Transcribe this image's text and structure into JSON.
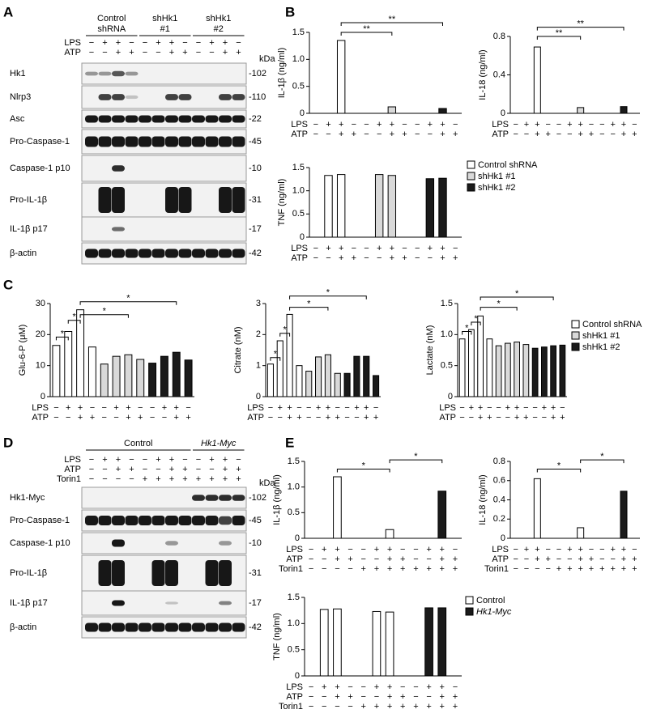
{
  "panel_labels": [
    "A",
    "B",
    "C",
    "D",
    "E"
  ],
  "panel_a": {
    "groups": [
      {
        "lines": [
          "Control",
          "shRNA"
        ]
      },
      {
        "lines": [
          "shHk1",
          "#1"
        ]
      },
      {
        "lines": [
          "shHk1",
          "#2"
        ]
      }
    ],
    "rows": [
      {
        "label": "LPS",
        "signs": [
          "−",
          "+",
          "+",
          "−",
          "−",
          "+",
          "+",
          "−",
          "−",
          "+",
          "+",
          "−"
        ]
      },
      {
        "label": "ATP",
        "signs": [
          "−",
          "−",
          "+",
          "+",
          "−",
          "−",
          "+",
          "+",
          "−",
          "−",
          "+",
          "+"
        ]
      }
    ],
    "kda_unit": "kDa",
    "blots": [
      {
        "label": "Hk1",
        "kda": "-102"
      },
      {
        "label": "Nlrp3",
        "kda": "-110"
      },
      {
        "label": "Asc",
        "kda": "-22"
      },
      {
        "label": "Pro-Caspase-1",
        "kda": "-45"
      },
      {
        "label": "Caspase-1 p10",
        "kda": "-10"
      },
      {
        "label": "Pro-IL-1β",
        "kda": "-31"
      },
      {
        "label": "IL-1β p17",
        "kda": "-17"
      },
      {
        "label": "β-actin",
        "kda": "-42"
      }
    ]
  },
  "panel_d": {
    "groups": [
      {
        "lines": [
          "Control"
        ]
      },
      {
        "lines": [
          "Hk1-Myc"
        ]
      }
    ],
    "rows": [
      {
        "label": "LPS",
        "signs": [
          "−",
          "+",
          "+",
          "−",
          "−",
          "+",
          "+",
          "−",
          "−",
          "+",
          "+",
          "−"
        ]
      },
      {
        "label": "ATP",
        "signs": [
          "−",
          "−",
          "+",
          "+",
          "−",
          "−",
          "+",
          "+",
          "−",
          "−",
          "+",
          "+"
        ]
      },
      {
        "label": "Torin1",
        "signs": [
          "−",
          "−",
          "−",
          "−",
          "+",
          "+",
          "+",
          "+",
          "+",
          "+",
          "+",
          "+"
        ]
      }
    ],
    "kda_unit": "kDa",
    "blots": [
      {
        "label": "Hk1-Myc",
        "kda": "-102"
      },
      {
        "label": "Pro-Caspase-1",
        "kda": "-45"
      },
      {
        "label": "Caspase-1 p10",
        "kda": "-10"
      },
      {
        "label": "Pro-IL-1β",
        "kda": "-31"
      },
      {
        "label": "IL-1β p17",
        "kda": "-17"
      },
      {
        "label": "β-actin",
        "kda": "-42"
      }
    ]
  },
  "chart_data": [
    {
      "type": "bar",
      "ylabel": "IL-1β (ng/ml)",
      "ylim": [
        0,
        1.5
      ],
      "yticks": [
        0,
        0.5,
        {
          "value": 1,
          "label": "1.0"
        },
        1.5
      ],
      "series": [
        {
          "color": "#ffffff",
          "values": [
            0,
            0,
            1.35,
            0,
            null,
            null,
            null,
            null,
            null,
            null,
            null,
            null
          ]
        },
        {
          "color": "#d9d9d9",
          "values": [
            null,
            null,
            null,
            null,
            0,
            0,
            0.12,
            0,
            null,
            null,
            null,
            null
          ]
        },
        {
          "color": "#1a1a1a",
          "values": [
            null,
            null,
            null,
            null,
            null,
            null,
            null,
            null,
            0,
            0,
            0.09,
            0
          ]
        }
      ],
      "annotations": [
        "**",
        "**"
      ],
      "rows": [
        {
          "label": "LPS",
          "signs": [
            "−",
            "+",
            "+",
            "−",
            "−",
            "+",
            "+",
            "−",
            "−",
            "+",
            "+",
            "−"
          ]
        },
        {
          "label": "ATP",
          "signs": [
            "−",
            "−",
            "+",
            "+",
            "−",
            "−",
            "+",
            "+",
            "−",
            "−",
            "+",
            "+"
          ]
        }
      ]
    },
    {
      "type": "bar",
      "ylabel": "IL-18 (ng/ml)",
      "ylim": [
        0,
        0.8
      ],
      "yticks": [
        0,
        0.4,
        0.8
      ],
      "series": [
        {
          "color": "#ffffff",
          "values": [
            0,
            0,
            0.69,
            0,
            null,
            null,
            null,
            null,
            null,
            null,
            null,
            null
          ]
        },
        {
          "color": "#d9d9d9",
          "values": [
            null,
            null,
            null,
            null,
            0,
            0,
            0.06,
            0,
            null,
            null,
            null,
            null
          ]
        },
        {
          "color": "#1a1a1a",
          "values": [
            null,
            null,
            null,
            null,
            null,
            null,
            null,
            null,
            0,
            0,
            0.07,
            0
          ]
        }
      ],
      "annotations": [
        "**",
        "**"
      ],
      "rows": [
        {
          "label": "LPS",
          "signs": [
            "−",
            "+",
            "+",
            "−",
            "−",
            "+",
            "+",
            "−",
            "−",
            "+",
            "+",
            "−"
          ]
        },
        {
          "label": "ATP",
          "signs": [
            "−",
            "−",
            "+",
            "+",
            "−",
            "−",
            "+",
            "+",
            "−",
            "−",
            "+",
            "+"
          ]
        }
      ]
    },
    {
      "type": "bar",
      "ylabel": "TNF (ng/ml)",
      "ylim": [
        0,
        1.5
      ],
      "yticks": [
        0,
        0.5,
        {
          "value": 1,
          "label": "1.0"
        },
        1.5
      ],
      "series": [
        {
          "name": "Control shRNA",
          "color": "#ffffff",
          "values": [
            0,
            1.33,
            1.35,
            0,
            null,
            null,
            null,
            null,
            null,
            null,
            null,
            null
          ]
        },
        {
          "name": "shHk1 #1",
          "color": "#d9d9d9",
          "values": [
            null,
            null,
            null,
            null,
            0,
            1.35,
            1.33,
            0,
            null,
            null,
            null,
            null
          ]
        },
        {
          "name": "shHk1 #2",
          "color": "#1a1a1a",
          "values": [
            null,
            null,
            null,
            null,
            null,
            null,
            null,
            null,
            0,
            1.26,
            1.27,
            0
          ]
        }
      ],
      "rows": [
        {
          "label": "LPS",
          "signs": [
            "−",
            "+",
            "+",
            "−",
            "−",
            "+",
            "+",
            "−",
            "−",
            "+",
            "+",
            "−"
          ]
        },
        {
          "label": "ATP",
          "signs": [
            "−",
            "−",
            "+",
            "+",
            "−",
            "−",
            "+",
            "+",
            "−",
            "−",
            "+",
            "+"
          ]
        }
      ]
    },
    {
      "type": "bar",
      "ylabel": "Glu-6-P (μM)",
      "ylim": [
        0,
        30
      ],
      "yticks": [
        0,
        10,
        20,
        30
      ],
      "series": [
        {
          "color": "#ffffff",
          "values": [
            16.5,
            21,
            28,
            16,
            null,
            null,
            null,
            null,
            null,
            null,
            null,
            null
          ]
        },
        {
          "color": "#d9d9d9",
          "values": [
            null,
            null,
            null,
            null,
            10.5,
            13,
            13.5,
            12,
            null,
            null,
            null,
            null
          ]
        },
        {
          "color": "#1a1a1a",
          "values": [
            null,
            null,
            null,
            null,
            null,
            null,
            null,
            null,
            10.8,
            13,
            14.3,
            11.8
          ]
        }
      ],
      "annotations": [
        "*",
        "*",
        "*",
        "*"
      ],
      "rows": [
        {
          "label": "LPS",
          "signs": [
            "−",
            "+",
            "+",
            "−",
            "−",
            "+",
            "+",
            "−",
            "−",
            "+",
            "+",
            "−"
          ]
        },
        {
          "label": "ATP",
          "signs": [
            "−",
            "−",
            "+",
            "+",
            "−",
            "−",
            "+",
            "+",
            "−",
            "−",
            "+",
            "+"
          ]
        }
      ]
    },
    {
      "type": "bar",
      "ylabel": "Citrate (nM)",
      "ylim": [
        0,
        3
      ],
      "yticks": [
        0,
        1,
        2,
        3
      ],
      "series": [
        {
          "color": "#ffffff",
          "values": [
            1.05,
            1.8,
            2.65,
            1.0,
            null,
            null,
            null,
            null,
            null,
            null,
            null,
            null
          ]
        },
        {
          "color": "#d9d9d9",
          "values": [
            null,
            null,
            null,
            null,
            0.82,
            1.28,
            1.35,
            0.75,
            null,
            null,
            null,
            null
          ]
        },
        {
          "color": "#1a1a1a",
          "values": [
            null,
            null,
            null,
            null,
            null,
            null,
            null,
            null,
            0.75,
            1.3,
            1.3,
            0.68
          ]
        }
      ],
      "annotations": [
        "*",
        "*",
        "*",
        "*"
      ],
      "rows": [
        {
          "label": "LPS",
          "signs": [
            "−",
            "+",
            "+",
            "−",
            "−",
            "+",
            "+",
            "−",
            "−",
            "+",
            "+",
            "−"
          ]
        },
        {
          "label": "ATP",
          "signs": [
            "−",
            "−",
            "+",
            "+",
            "−",
            "−",
            "+",
            "+",
            "−",
            "−",
            "+",
            "+"
          ]
        }
      ]
    },
    {
      "type": "bar",
      "ylabel": "Lactate (nM)",
      "ylim": [
        0,
        1.5
      ],
      "yticks": [
        0,
        0.5,
        {
          "value": 1,
          "label": "1.0"
        },
        1.5
      ],
      "series": [
        {
          "name": "Control shRNA",
          "color": "#ffffff",
          "values": [
            0.93,
            1.08,
            1.3,
            0.93,
            null,
            null,
            null,
            null,
            null,
            null,
            null,
            null
          ]
        },
        {
          "name": "shHk1 #1",
          "color": "#d9d9d9",
          "values": [
            null,
            null,
            null,
            null,
            0.82,
            0.86,
            0.88,
            0.84,
            null,
            null,
            null,
            null
          ]
        },
        {
          "name": "shHk1 #2",
          "color": "#1a1a1a",
          "values": [
            null,
            null,
            null,
            null,
            null,
            null,
            null,
            null,
            0.78,
            0.8,
            0.82,
            0.83
          ]
        }
      ],
      "annotations": [
        "*",
        "*",
        "*",
        "*"
      ],
      "rows": [
        {
          "label": "LPS",
          "signs": [
            "−",
            "+",
            "+",
            "−",
            "−",
            "+",
            "+",
            "−",
            "−",
            "+",
            "+",
            "−"
          ]
        },
        {
          "label": "ATP",
          "signs": [
            "−",
            "−",
            "+",
            "+",
            "−",
            "−",
            "+",
            "+",
            "−",
            "−",
            "+",
            "+"
          ]
        }
      ]
    },
    {
      "type": "bar",
      "ylabel": "IL-1β (ng/ml)",
      "ylim": [
        0,
        1.5
      ],
      "yticks": [
        0,
        0.5,
        {
          "value": 1,
          "label": "1.0"
        },
        1.5
      ],
      "series": [
        {
          "color": "#ffffff",
          "values": [
            0,
            0,
            1.2,
            0,
            0,
            0,
            0.17,
            0,
            null,
            null,
            null,
            null
          ]
        },
        {
          "color": "#1a1a1a",
          "values": [
            null,
            null,
            null,
            null,
            null,
            null,
            null,
            null,
            0,
            0,
            0.92,
            0
          ]
        }
      ],
      "annotations": [
        "*",
        "*"
      ],
      "rows": [
        {
          "label": "LPS",
          "signs": [
            "−",
            "+",
            "+",
            "−",
            "−",
            "+",
            "+",
            "−",
            "−",
            "+",
            "+",
            "−"
          ]
        },
        {
          "label": "ATP",
          "signs": [
            "−",
            "−",
            "+",
            "+",
            "−",
            "−",
            "+",
            "+",
            "−",
            "−",
            "+",
            "+"
          ]
        },
        {
          "label": "Torin1",
          "signs": [
            "−",
            "−",
            "−",
            "−",
            "+",
            "+",
            "+",
            "+",
            "+",
            "+",
            "+",
            "+"
          ]
        }
      ]
    },
    {
      "type": "bar",
      "ylabel": "IL-18 (ng/ml)",
      "ylim": [
        0,
        0.8
      ],
      "yticks": [
        0,
        0.2,
        0.4,
        0.6,
        0.8
      ],
      "series": [
        {
          "color": "#ffffff",
          "values": [
            0,
            0,
            0.62,
            0,
            0,
            0,
            0.11,
            0,
            null,
            null,
            null,
            null
          ]
        },
        {
          "color": "#1a1a1a",
          "values": [
            null,
            null,
            null,
            null,
            null,
            null,
            null,
            null,
            0,
            0,
            0.49,
            0
          ]
        }
      ],
      "annotations": [
        "*",
        "*"
      ],
      "rows": [
        {
          "label": "LPS",
          "signs": [
            "−",
            "+",
            "+",
            "−",
            "−",
            "+",
            "+",
            "−",
            "−",
            "+",
            "+",
            "−"
          ]
        },
        {
          "label": "ATP",
          "signs": [
            "−",
            "−",
            "+",
            "+",
            "−",
            "−",
            "+",
            "+",
            "−",
            "−",
            "+",
            "+"
          ]
        },
        {
          "label": "Torin1",
          "signs": [
            "−",
            "−",
            "−",
            "−",
            "+",
            "+",
            "+",
            "+",
            "+",
            "+",
            "+",
            "+"
          ]
        }
      ]
    },
    {
      "type": "bar",
      "ylabel": "TNF (ng/ml)",
      "ylim": [
        0,
        1.5
      ],
      "yticks": [
        0,
        0.5,
        {
          "value": 1,
          "label": "1.0"
        },
        1.5
      ],
      "series": [
        {
          "name": "Control",
          "color": "#ffffff",
          "values": [
            0,
            1.27,
            1.28,
            0,
            0,
            1.23,
            1.22,
            0,
            null,
            null,
            null,
            null
          ]
        },
        {
          "name": "Hk1-Myc",
          "color": "#1a1a1a",
          "values": [
            null,
            null,
            null,
            null,
            null,
            null,
            null,
            null,
            0,
            1.3,
            1.3,
            0
          ]
        }
      ],
      "rows": [
        {
          "label": "LPS",
          "signs": [
            "−",
            "+",
            "+",
            "−",
            "−",
            "+",
            "+",
            "−",
            "−",
            "+",
            "+",
            "−"
          ]
        },
        {
          "label": "ATP",
          "signs": [
            "−",
            "−",
            "+",
            "+",
            "−",
            "−",
            "+",
            "+",
            "−",
            "−",
            "+",
            "+"
          ]
        },
        {
          "label": "Torin1",
          "signs": [
            "−",
            "−",
            "−",
            "−",
            "+",
            "+",
            "+",
            "+",
            "+",
            "+",
            "+",
            "+"
          ]
        }
      ]
    }
  ]
}
